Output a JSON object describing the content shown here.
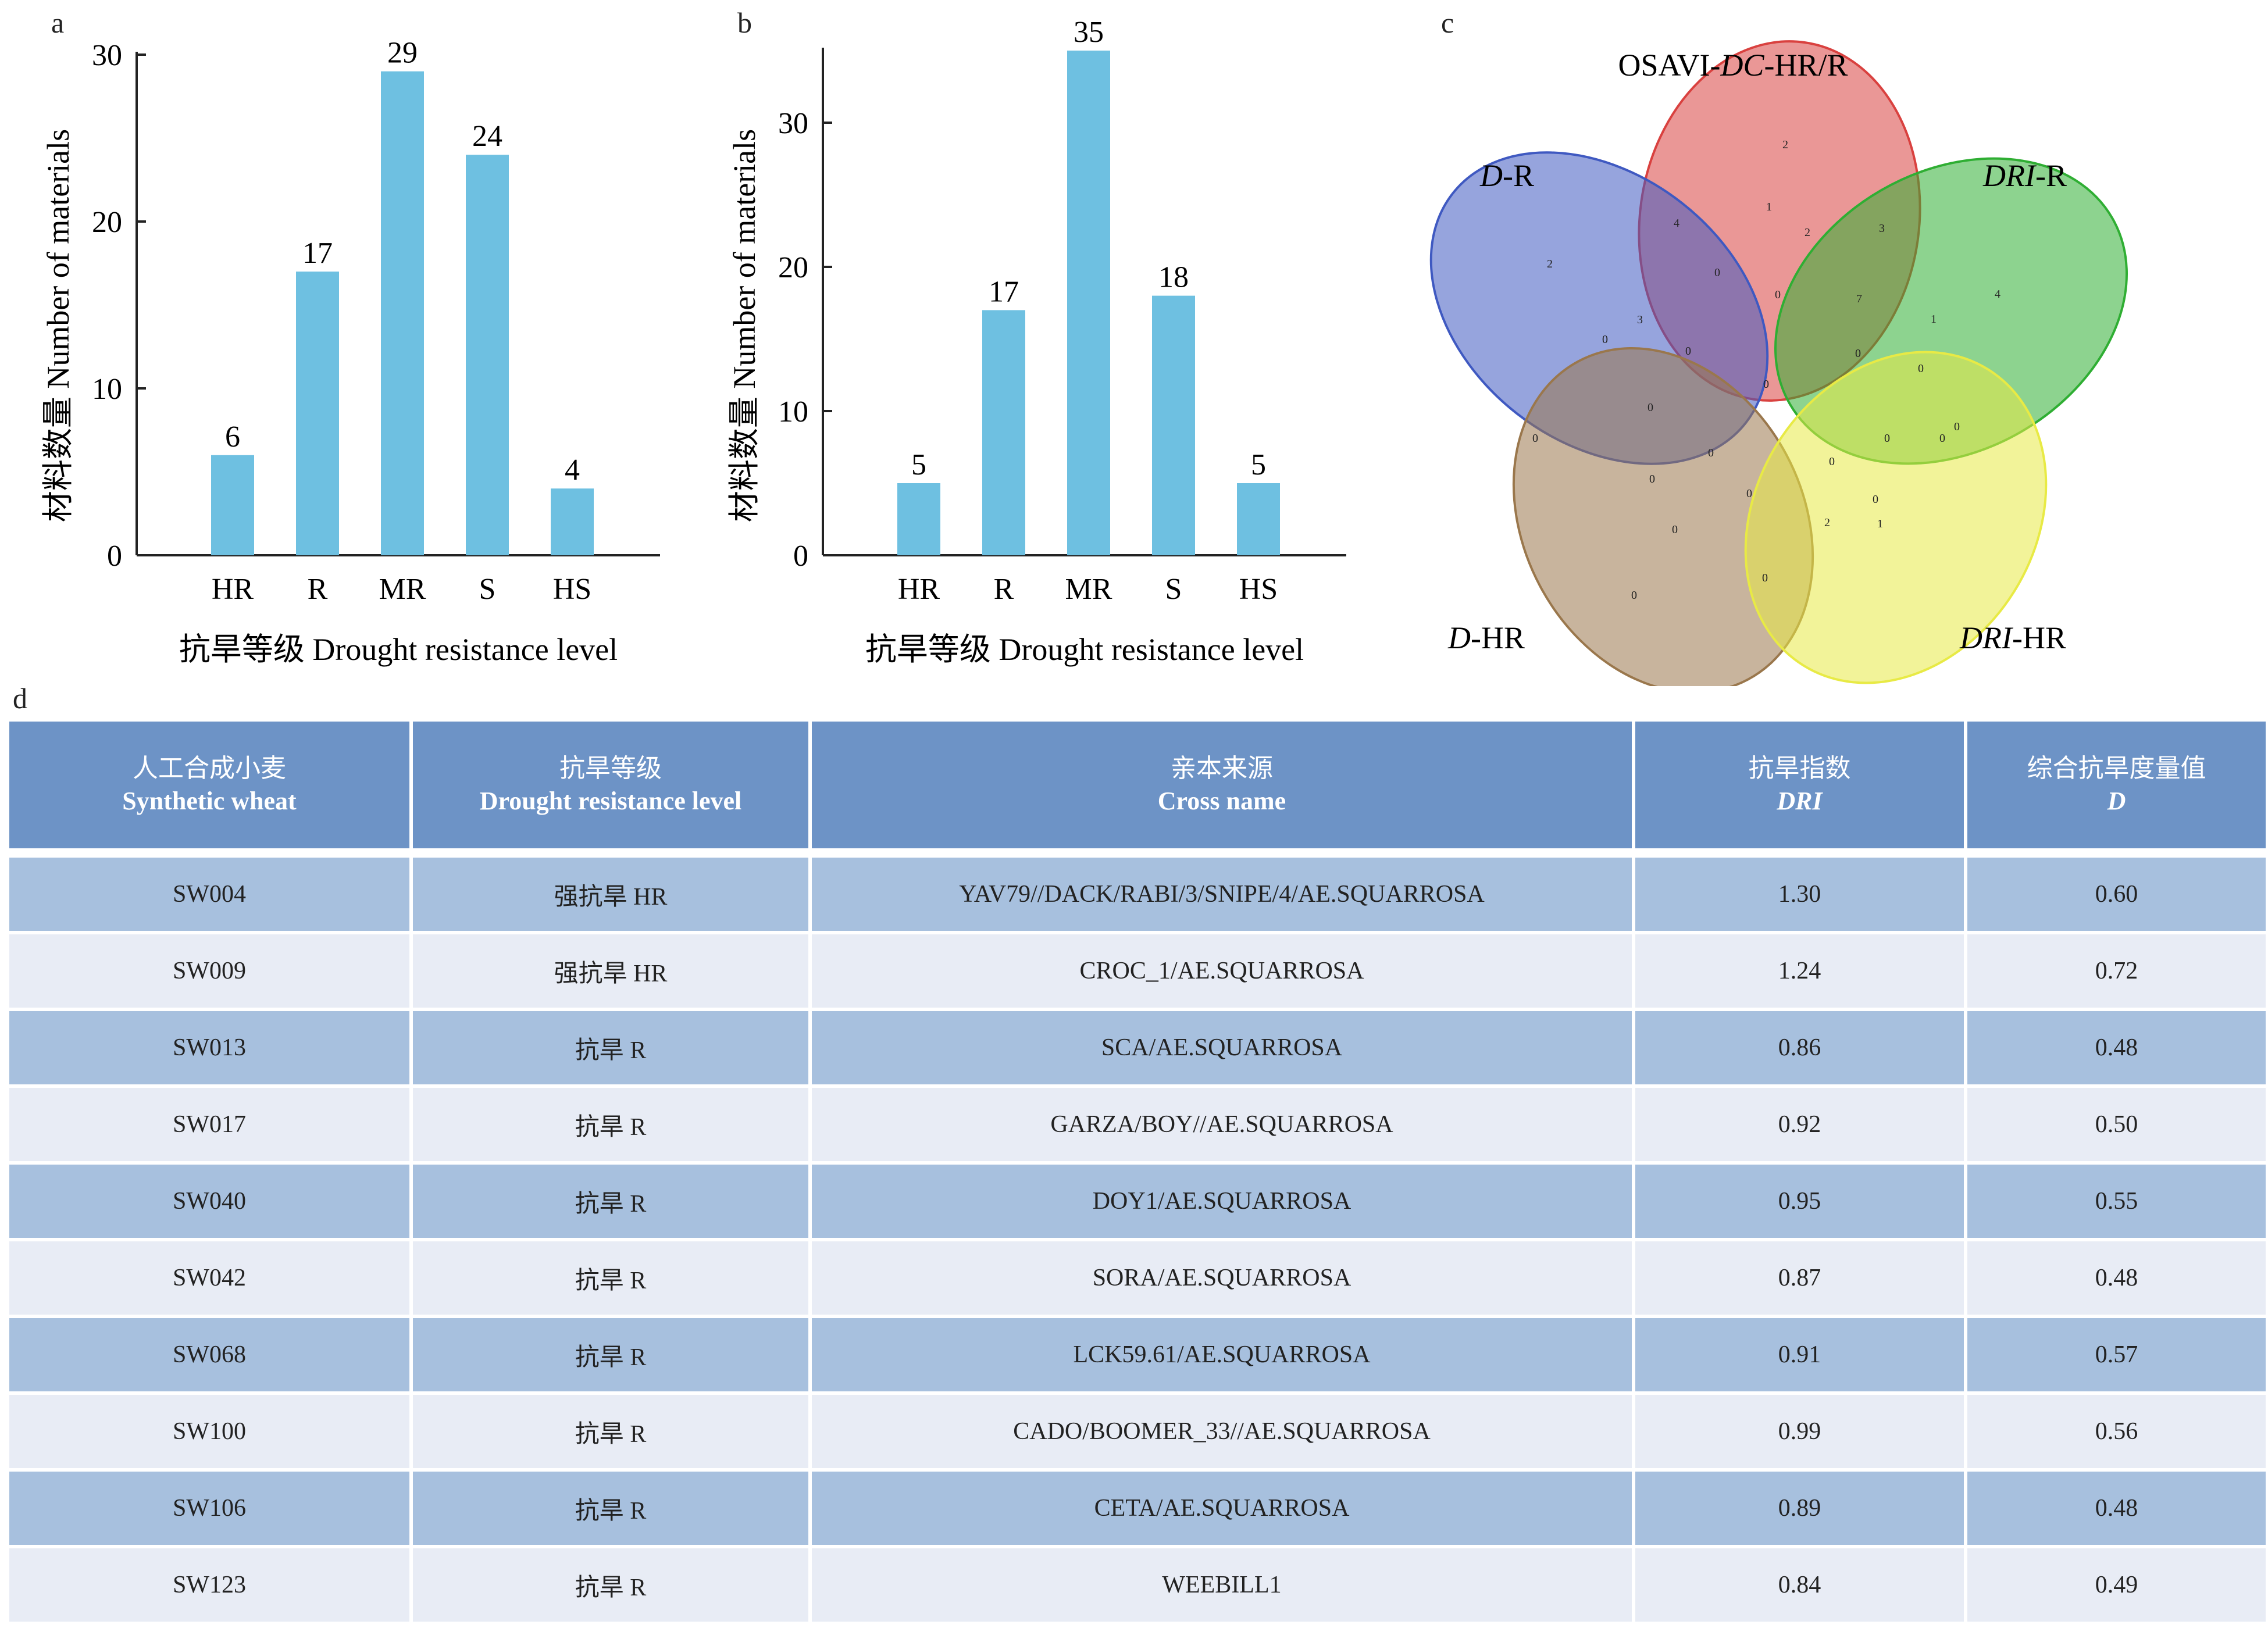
{
  "panels": {
    "a": "a",
    "b": "b",
    "c": "c",
    "d": "d"
  },
  "chart_data": [
    {
      "type": "bar",
      "panel": "a",
      "categories": [
        "HR",
        "R",
        "MR",
        "S",
        "HS"
      ],
      "values": [
        6,
        17,
        29,
        24,
        4
      ],
      "xlabel": "抗旱等级 Drought resistance level",
      "ylabel": "材料数量 Number of materials",
      "ylim": [
        0,
        30
      ],
      "yticks": [
        0,
        10,
        20,
        30
      ],
      "bar_color": "#6ec0e1",
      "grid": false
    },
    {
      "type": "bar",
      "panel": "b",
      "categories": [
        "HR",
        "R",
        "MR",
        "S",
        "HS"
      ],
      "values": [
        5,
        17,
        35,
        18,
        5
      ],
      "xlabel": "抗旱等级 Drought resistance level",
      "ylabel": "材料数量 Number of materials",
      "ylim": [
        0,
        35
      ],
      "yticks": [
        0,
        10,
        20,
        30
      ],
      "bar_color": "#6ec0e1",
      "grid": false
    }
  ],
  "venn": {
    "sets": [
      {
        "label_pre": "OSAVI-",
        "label_it": "DC",
        "label_post": "-HR/R",
        "color": "#d9413f"
      },
      {
        "label_pre": "",
        "label_it": "D",
        "label_post": "-R",
        "color": "#3f59c1"
      },
      {
        "label_pre": "",
        "label_it": "DRI",
        "label_post": "-R",
        "color": "#2fae33"
      },
      {
        "label_pre": "",
        "label_it": "D",
        "label_post": "-HR",
        "color": "#9a774c"
      },
      {
        "label_pre": "",
        "label_it": "DRI",
        "label_post": "-HR",
        "color": "#e8ea45"
      }
    ],
    "counts": [
      "2",
      "4",
      "1",
      "2",
      "3",
      "2",
      "0",
      "0",
      "7",
      "1",
      "4",
      "3",
      "0",
      "0",
      "0",
      "0",
      "0",
      "0",
      "0",
      "0",
      "0",
      "0",
      "0",
      "0",
      "0",
      "0",
      "0",
      "0",
      "2",
      "1",
      "0",
      "0"
    ]
  },
  "table": {
    "headers": [
      {
        "cn": "人工合成小麦",
        "en": "Synthetic wheat",
        "italic": false
      },
      {
        "cn": "抗旱等级",
        "en": "Drought resistance level",
        "italic": false
      },
      {
        "cn": "亲本来源",
        "en": "Cross name",
        "italic": false
      },
      {
        "cn": "抗旱指数",
        "en": "DRI",
        "italic": true
      },
      {
        "cn": "综合抗旱度量值",
        "en": "D",
        "italic": true
      }
    ],
    "rows": [
      [
        "SW004",
        "强抗旱 HR",
        "YAV79//DACK/RABI/3/SNIPE/4/AE.SQUARROSA",
        "1.30",
        "0.60"
      ],
      [
        "SW009",
        "强抗旱 HR",
        "CROC_1/AE.SQUARROSA",
        "1.24",
        "0.72"
      ],
      [
        "SW013",
        "抗旱 R",
        "SCA/AE.SQUARROSA",
        "0.86",
        "0.48"
      ],
      [
        "SW017",
        "抗旱 R",
        "GARZA/BOY//AE.SQUARROSA",
        "0.92",
        "0.50"
      ],
      [
        "SW040",
        "抗旱 R",
        "DOY1/AE.SQUARROSA",
        "0.95",
        "0.55"
      ],
      [
        "SW042",
        "抗旱 R",
        "SORA/AE.SQUARROSA",
        "0.87",
        "0.48"
      ],
      [
        "SW068",
        "抗旱 R",
        "LCK59.61/AE.SQUARROSA",
        "0.91",
        "0.57"
      ],
      [
        "SW100",
        "抗旱 R",
        "CADO/BOOMER_33//AE.SQUARROSA",
        "0.99",
        "0.56"
      ],
      [
        "SW106",
        "抗旱 R",
        "CETA/AE.SQUARROSA",
        "0.89",
        "0.48"
      ],
      [
        "SW123",
        "抗旱 R",
        "WEEBILL1",
        "0.84",
        "0.49"
      ]
    ]
  }
}
